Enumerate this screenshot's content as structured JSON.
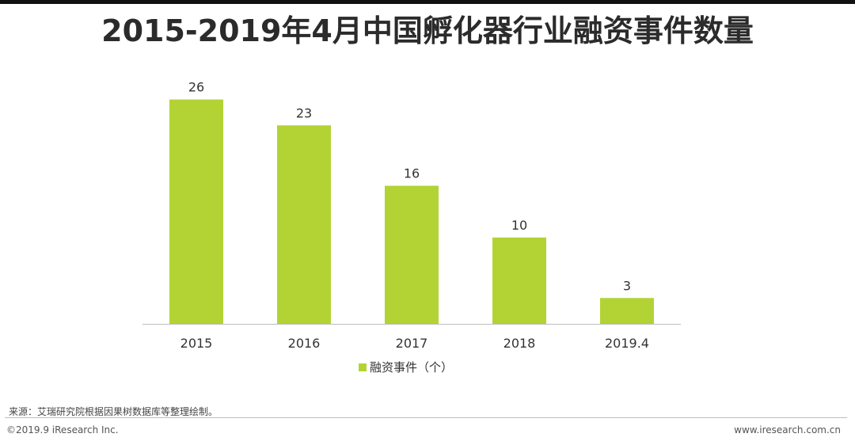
{
  "title": "2015-2019年4月中国孵化器行业融资事件数量",
  "chart_data": {
    "type": "bar",
    "title": "2015-2019年4月中国孵化器行业融资事件数量",
    "categories": [
      "2015",
      "2016",
      "2017",
      "2018",
      "2019.4"
    ],
    "series": [
      {
        "name": "融资事件（个）",
        "values": [
          26,
          23,
          16,
          10,
          3
        ]
      }
    ],
    "xlabel": "",
    "ylabel": "",
    "ylim": [
      0,
      26
    ],
    "grid": false,
    "legend": "bottom",
    "color": "#b3d335"
  },
  "footer": {
    "source": "来源：艾瑞研究院根据因果树数据库等整理绘制。",
    "copyright": "©2019.9 iResearch Inc.",
    "website": "www.iresearch.com.cn"
  }
}
